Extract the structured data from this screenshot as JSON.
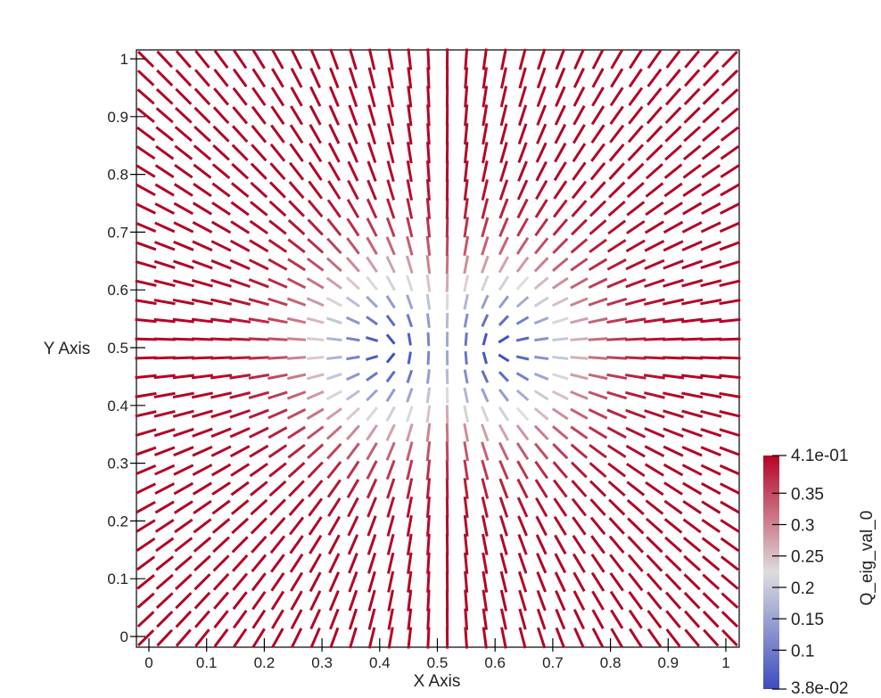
{
  "chart_data": {
    "type": "scatter",
    "subtype": "director-field-glyphs",
    "xlabel": "X Axis",
    "ylabel": "Y Axis",
    "xlim": [
      0,
      1
    ],
    "ylim": [
      0,
      1
    ],
    "x_ticks": [
      "0",
      "0.1",
      "0.2",
      "0.3",
      "0.4",
      "0.5",
      "0.6",
      "0.7",
      "0.8",
      "0.9",
      "1"
    ],
    "y_ticks": [
      "0",
      "0.1",
      "0.2",
      "0.3",
      "0.4",
      "0.5",
      "0.6",
      "0.7",
      "0.8",
      "0.9",
      "1"
    ],
    "grid": false,
    "field": {
      "grid_size": 32,
      "defects": [
        {
          "x": 0.42,
          "y": 0.5,
          "charge": 0.5
        },
        {
          "x": 0.6,
          "y": 0.5,
          "charge": 0.5
        }
      ]
    },
    "colorbar": {
      "title": "Q_eig_val_0",
      "min_label": "3.8e-02",
      "max_label": "4.1e-01",
      "min": 0.038,
      "max": 0.41,
      "tick_values": [
        0.35,
        0.3,
        0.25,
        0.2,
        0.15,
        0.1
      ],
      "tick_labels": [
        "0.35",
        "0.3",
        "0.25",
        "0.2",
        "0.15",
        "0.1"
      ],
      "colormap": [
        "#3b4cc0",
        "#dddddd",
        "#b40426"
      ]
    }
  }
}
